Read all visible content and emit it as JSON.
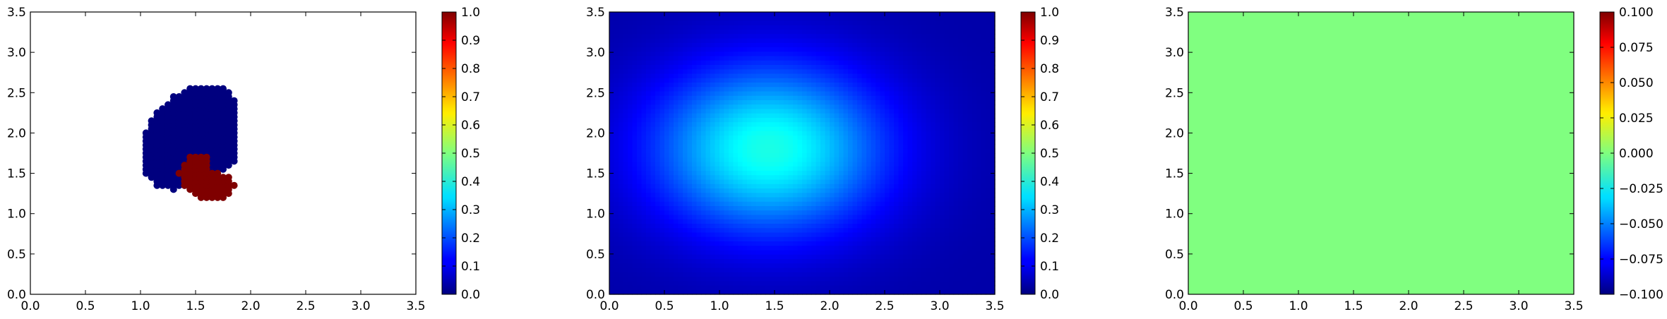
{
  "chart_data": [
    {
      "type": "scatter",
      "title": "",
      "xlabel": "",
      "ylabel": "",
      "xlim": [
        0.0,
        3.5
      ],
      "ylim": [
        0.0,
        3.5
      ],
      "x_ticks": [
        "0.0",
        "0.5",
        "1.0",
        "1.5",
        "2.0",
        "2.5",
        "3.0",
        "3.5"
      ],
      "y_ticks": [
        "0.0",
        "0.5",
        "1.0",
        "1.5",
        "2.0",
        "2.5",
        "3.0",
        "3.5"
      ],
      "grid": false,
      "colormap": "jet",
      "marker": "circle",
      "series": [
        {
          "value": 0.0,
          "color": "#00007f",
          "region": {
            "shape": "blob",
            "x_range": [
              1.05,
              1.9
            ],
            "y_range": [
              1.25,
              2.55
            ],
            "description_points": [
              [
                1.45,
                2.55
              ],
              [
                1.75,
                2.55
              ],
              [
                1.85,
                2.45
              ],
              [
                1.9,
                2.35
              ],
              [
                1.9,
                2.0
              ],
              [
                1.85,
                1.6
              ],
              [
                1.45,
                1.35
              ],
              [
                1.3,
                1.28
              ],
              [
                1.15,
                1.35
              ],
              [
                1.05,
                1.5
              ],
              [
                1.05,
                2.05
              ],
              [
                1.15,
                2.25
              ],
              [
                1.3,
                2.45
              ]
            ]
          }
        },
        {
          "value": 1.0,
          "color": "#7f0000",
          "region": {
            "shape": "blob",
            "x_range": [
              1.35,
              1.87
            ],
            "y_range": [
              1.2,
              1.75
            ],
            "description_points": [
              [
                1.45,
                1.72
              ],
              [
                1.6,
                1.72
              ],
              [
                1.65,
                1.55
              ],
              [
                1.78,
                1.48
              ],
              [
                1.87,
                1.35
              ],
              [
                1.8,
                1.2
              ],
              [
                1.55,
                1.2
              ],
              [
                1.4,
                1.35
              ],
              [
                1.35,
                1.5
              ]
            ]
          }
        }
      ],
      "colorbar": {
        "ticks": [
          "0.0",
          "0.1",
          "0.2",
          "0.3",
          "0.4",
          "0.5",
          "0.6",
          "0.7",
          "0.8",
          "0.9",
          "1.0"
        ],
        "range": [
          0.0,
          1.0
        ]
      }
    },
    {
      "type": "heatmap",
      "title": "",
      "xlabel": "",
      "ylabel": "",
      "xlim": [
        0.0,
        3.5
      ],
      "ylim": [
        0.0,
        3.5
      ],
      "x_ticks": [
        "0.0",
        "0.5",
        "1.0",
        "1.5",
        "2.0",
        "2.5",
        "3.0",
        "3.5"
      ],
      "y_ticks": [
        "0.0",
        "0.5",
        "1.0",
        "1.5",
        "2.0",
        "2.5",
        "3.0",
        "3.5"
      ],
      "grid": false,
      "colormap": "jet",
      "field": {
        "kind": "gaussian",
        "peak_value": 0.4,
        "peak_center": [
          1.45,
          1.8
        ],
        "spread": [
          1.05,
          1.05
        ],
        "boundary_value": 0.14,
        "corner_value": 0.04
      },
      "colorbar": {
        "ticks": [
          "0.0",
          "0.1",
          "0.2",
          "0.3",
          "0.4",
          "0.5",
          "0.6",
          "0.7",
          "0.8",
          "0.9",
          "1.0"
        ],
        "range": [
          0.0,
          1.0
        ]
      }
    },
    {
      "type": "heatmap",
      "title": "",
      "xlabel": "",
      "ylabel": "",
      "xlim": [
        0.0,
        3.5
      ],
      "ylim": [
        0.0,
        3.5
      ],
      "x_ticks": [
        "0.0",
        "0.5",
        "1.0",
        "1.5",
        "2.0",
        "2.5",
        "3.0",
        "3.5"
      ],
      "y_ticks": [
        "0.0",
        "0.5",
        "1.0",
        "1.5",
        "2.0",
        "2.5",
        "3.0",
        "3.5"
      ],
      "grid": false,
      "colormap": "jet",
      "field": {
        "kind": "constant",
        "value": 0.0
      },
      "colorbar": {
        "ticks": [
          "−0.100",
          "−0.075",
          "−0.050",
          "−0.025",
          "0.000",
          "0.025",
          "0.050",
          "0.075",
          "0.100"
        ],
        "range": [
          -0.1,
          0.1
        ]
      }
    }
  ]
}
